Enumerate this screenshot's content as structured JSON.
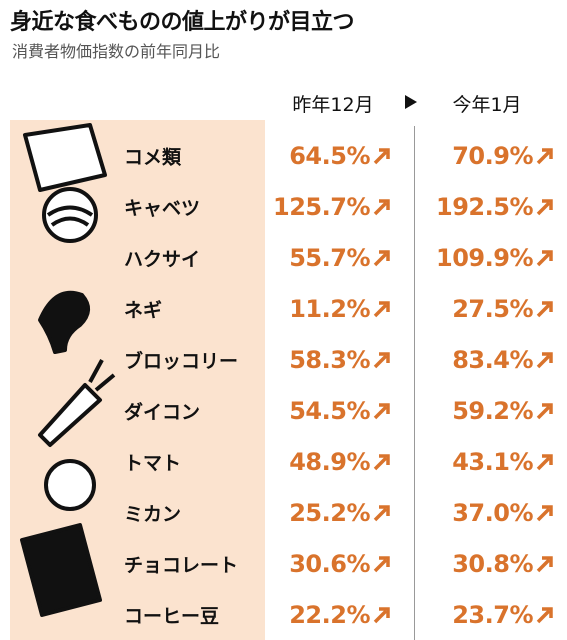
{
  "header": {
    "title": "身近な食べものの値上がりが目立つ",
    "subtitle": "消費者物価指数の前年同月比"
  },
  "table": {
    "columns": [
      "昨年12月",
      "今年1月"
    ],
    "rows": [
      [
        "コメ類",
        "64.5%",
        "70.9%"
      ],
      [
        "キャベツ",
        "125.7%",
        "192.5%"
      ],
      [
        "ハクサイ",
        "55.7%",
        "109.9%"
      ],
      [
        "ネギ",
        "11.2%",
        "27.5%"
      ],
      [
        "ブロッコリー",
        "58.3%",
        "83.4%"
      ],
      [
        "ダイコン",
        "54.5%",
        "59.2%"
      ],
      [
        "トマト",
        "48.9%",
        "43.1%"
      ],
      [
        "ミカン",
        "25.2%",
        "37.0%"
      ],
      [
        "チョコレート",
        "30.6%",
        "30.8%"
      ],
      [
        "コーヒー豆",
        "22.2%",
        "23.7%"
      ]
    ]
  }
}
